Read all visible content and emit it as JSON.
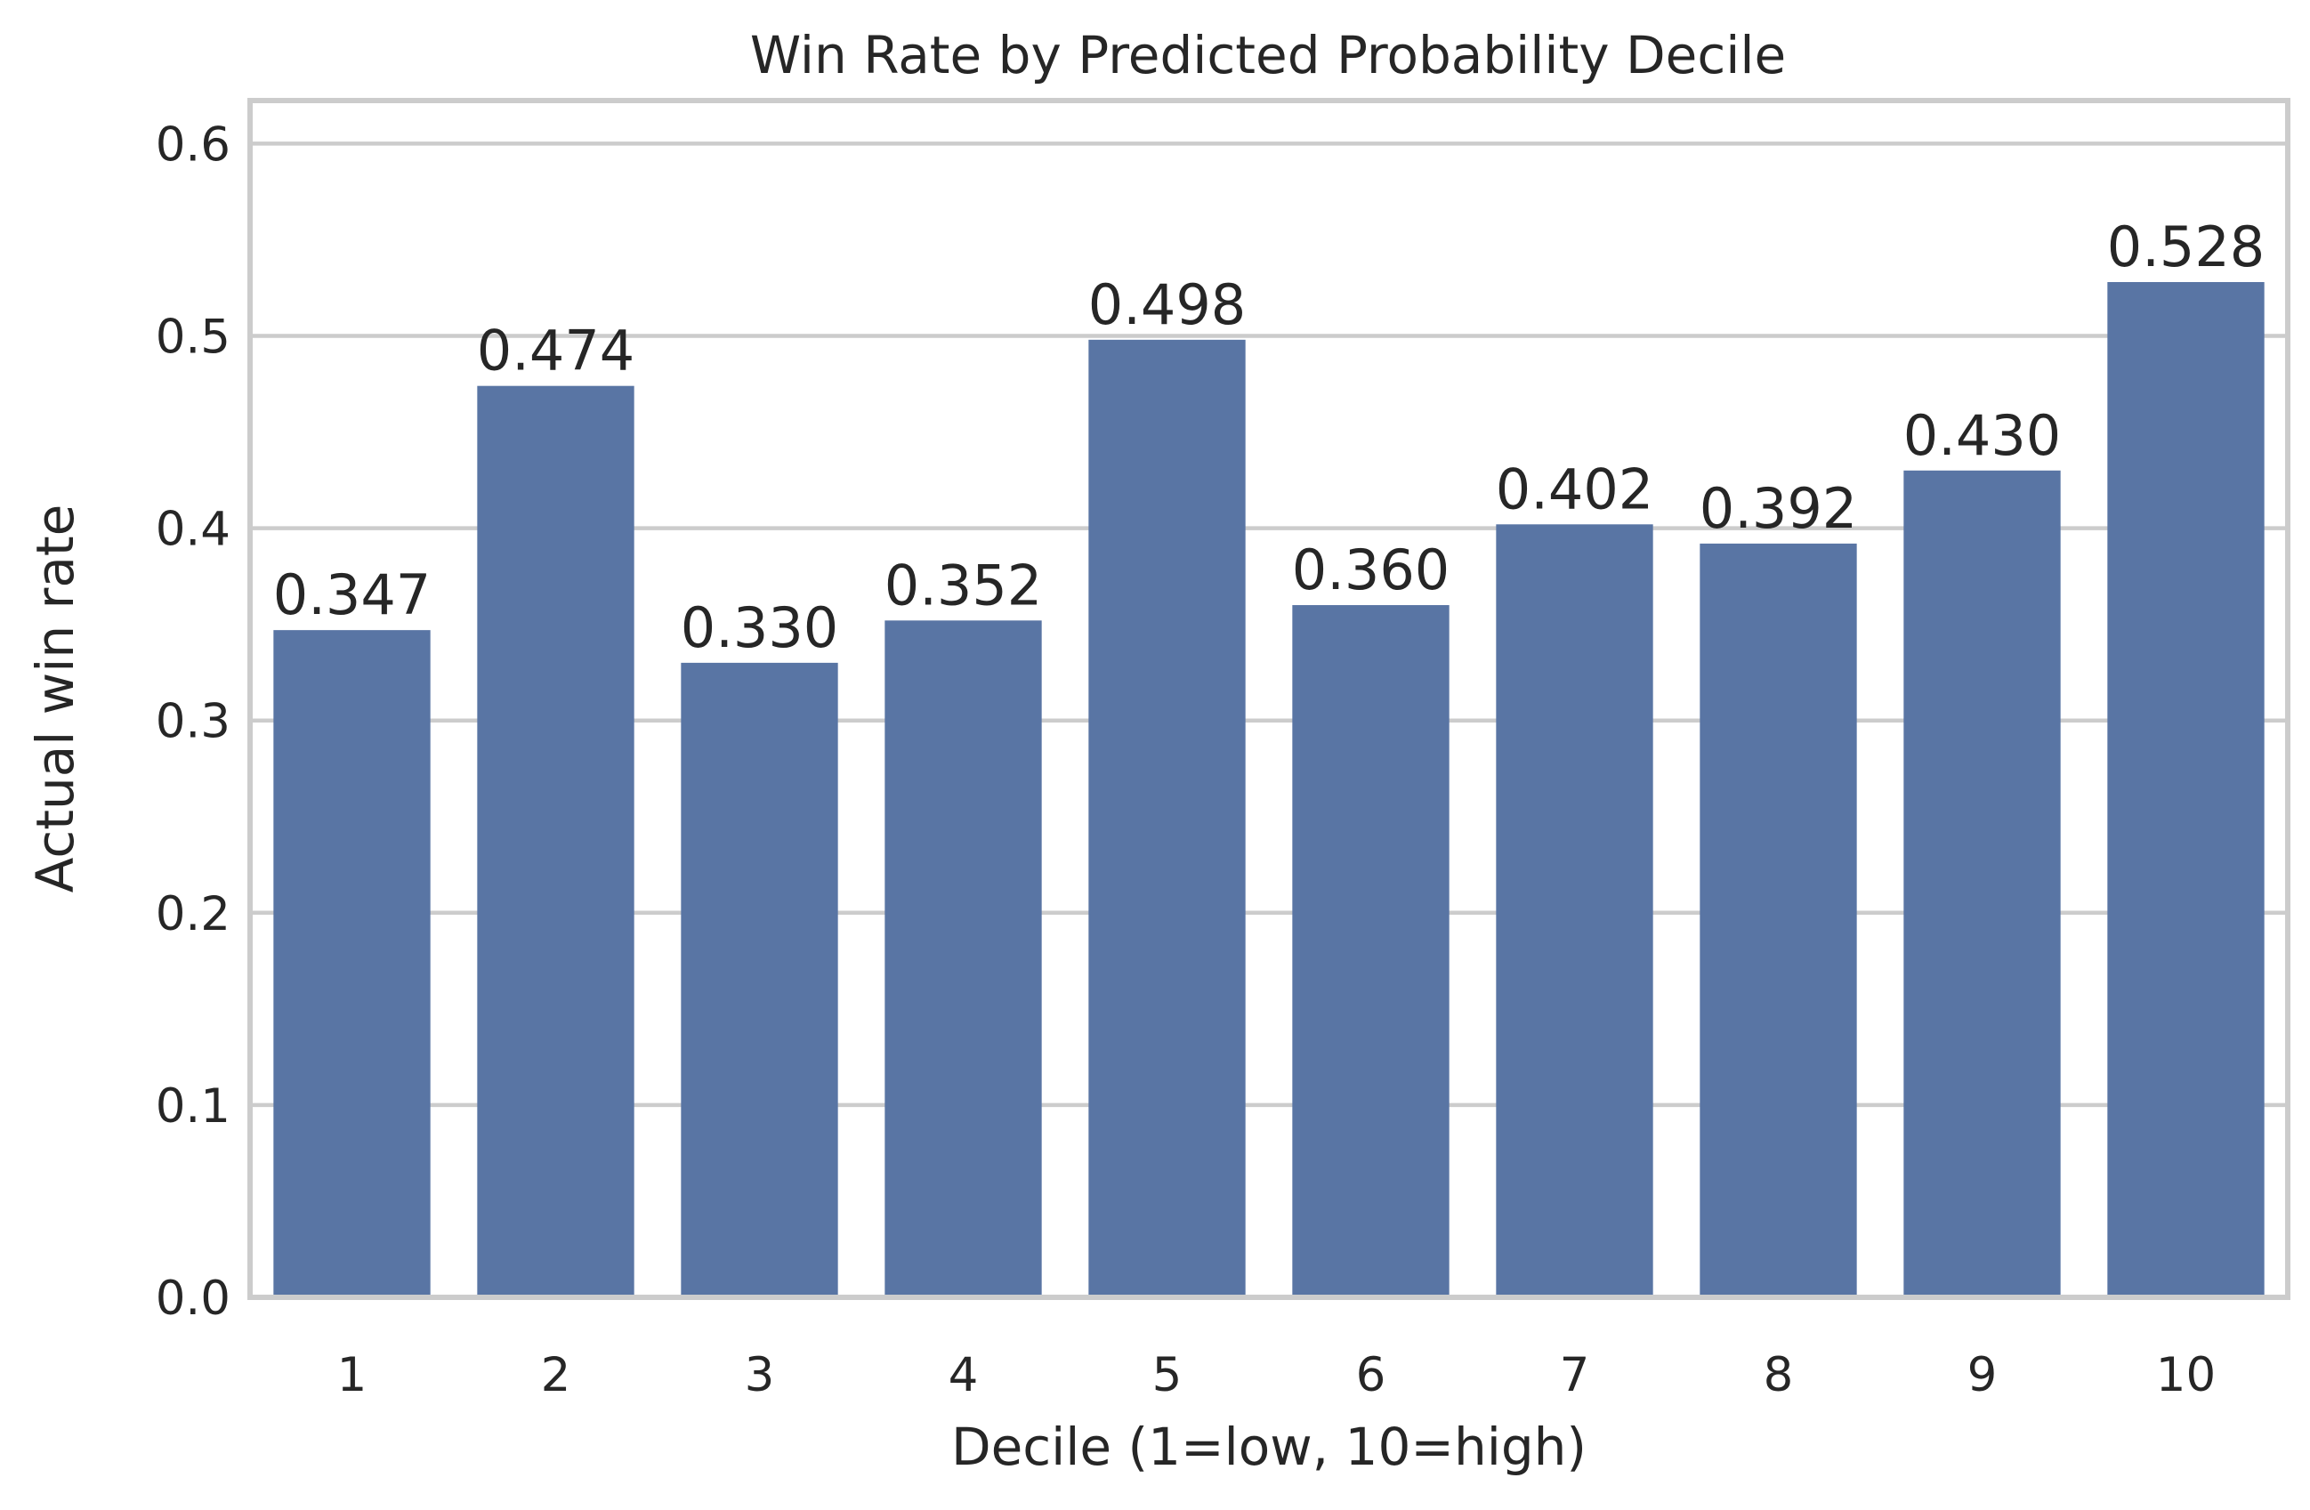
{
  "chart_data": {
    "type": "bar",
    "title": "Win Rate by Predicted Probability Decile",
    "xlabel": "Decile (1=low, 10=high)",
    "ylabel": "Actual win rate",
    "categories": [
      "1",
      "2",
      "3",
      "4",
      "5",
      "6",
      "7",
      "8",
      "9",
      "10"
    ],
    "values": [
      0.347,
      0.474,
      0.33,
      0.352,
      0.498,
      0.36,
      0.402,
      0.392,
      0.43,
      0.528
    ],
    "value_labels": [
      "0.347",
      "0.474",
      "0.330",
      "0.352",
      "0.498",
      "0.360",
      "0.402",
      "0.392",
      "0.430",
      "0.528"
    ],
    "ylim": [
      0,
      0.6224
    ],
    "yticks": [
      0.0,
      0.1,
      0.2,
      0.3,
      0.4,
      0.5,
      0.6
    ],
    "ytick_labels": [
      "0.0",
      "0.1",
      "0.2",
      "0.3",
      "0.4",
      "0.5",
      "0.6"
    ],
    "grid": "horizontal",
    "bar_color": "#5975a4",
    "grid_color": "#cccccc",
    "text_color": "#262626"
  }
}
